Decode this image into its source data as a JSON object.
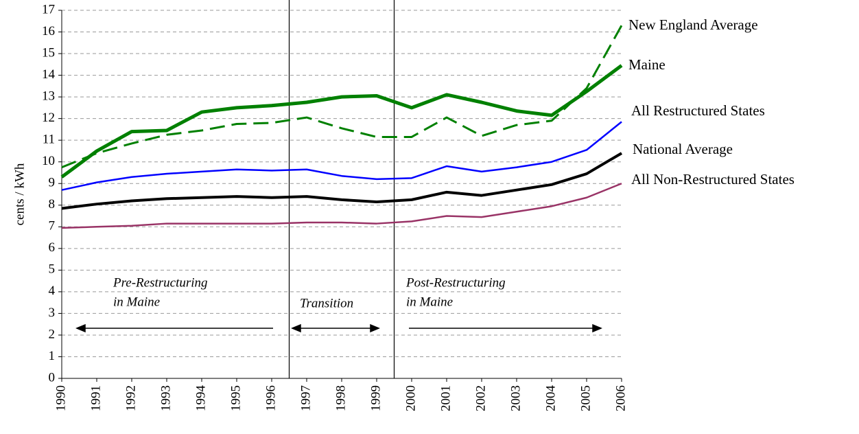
{
  "chart_data": {
    "type": "line",
    "y_label": "cents / kWh",
    "categories": [
      "1990",
      "1991",
      "1992",
      "1993",
      "1994",
      "1995",
      "1996",
      "1997",
      "1998",
      "1999",
      "2000",
      "2001",
      "2002",
      "2003",
      "2004",
      "2005",
      "2006"
    ],
    "series": [
      {
        "name": "New England Average",
        "color": "#008000",
        "dashed": true,
        "width": 3,
        "values": [
          9.75,
          10.4,
          10.85,
          11.25,
          11.45,
          11.75,
          11.8,
          12.05,
          11.55,
          11.15,
          11.15,
          12.05,
          11.2,
          11.7,
          11.9,
          13.4,
          16.3
        ]
      },
      {
        "name": "Maine",
        "color": "#008000",
        "dashed": false,
        "width": 5,
        "values": [
          9.3,
          10.5,
          11.4,
          11.45,
          12.3,
          12.5,
          12.6,
          12.75,
          13.0,
          13.05,
          12.5,
          13.1,
          12.75,
          12.35,
          12.15,
          13.25,
          14.45
        ]
      },
      {
        "name": "All Restructured States",
        "color": "#0000ff",
        "dashed": false,
        "width": 2.5,
        "values": [
          8.7,
          9.05,
          9.3,
          9.45,
          9.55,
          9.65,
          9.6,
          9.65,
          9.35,
          9.2,
          9.25,
          9.8,
          9.55,
          9.75,
          10.0,
          10.55,
          11.85
        ]
      },
      {
        "name": "National Average",
        "color": "#000000",
        "dashed": false,
        "width": 4,
        "values": [
          7.85,
          8.05,
          8.2,
          8.3,
          8.35,
          8.4,
          8.35,
          8.4,
          8.25,
          8.15,
          8.25,
          8.6,
          8.45,
          8.7,
          8.95,
          9.45,
          10.4
        ]
      },
      {
        "name": "All Non-Restructured States",
        "color": "#993366",
        "dashed": false,
        "width": 2.5,
        "values": [
          6.95,
          7.0,
          7.05,
          7.15,
          7.15,
          7.15,
          7.15,
          7.2,
          7.2,
          7.15,
          7.25,
          7.5,
          7.45,
          7.7,
          7.95,
          8.35,
          9.0
        ]
      }
    ],
    "ylim": [
      0,
      17
    ],
    "yticks": [
      0,
      1,
      2,
      3,
      4,
      5,
      6,
      7,
      8,
      9,
      10,
      11,
      12,
      13,
      14,
      15,
      16,
      17
    ],
    "grid": true,
    "annotations": [
      "Pre-Restructuring",
      "in Maine",
      "Transition",
      "Post-Restructuring",
      "in Maine"
    ]
  }
}
